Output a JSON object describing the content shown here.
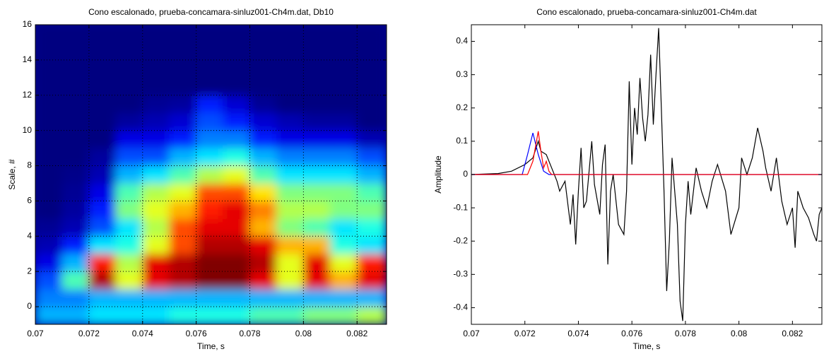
{
  "chart_data": [
    {
      "type": "heatmap",
      "title": "Cono escalonado, prueba-concamara-sinluz001-Ch4m.dat, Db10",
      "x_label": "Time, s",
      "y_label": "Scale, #",
      "xlim": [
        0.07,
        0.0831
      ],
      "ylim": [
        -1,
        16
      ],
      "xticks": [
        0.07,
        0.072,
        0.074,
        0.076,
        0.078,
        0.08,
        0.082
      ],
      "yticks": [
        0,
        2,
        4,
        6,
        8,
        10,
        12,
        14,
        16
      ],
      "grid": true,
      "colormap": "jet",
      "x_edges": [
        0.07,
        0.071,
        0.072,
        0.073,
        0.074,
        0.075,
        0.076,
        0.077,
        0.078,
        0.079,
        0.08,
        0.081,
        0.082,
        0.083,
        0.0831
      ],
      "y_edges": [
        -1,
        0,
        1,
        2,
        3,
        4,
        5,
        6,
        7,
        8,
        9,
        10,
        11,
        12,
        16
      ],
      "z": [
        [
          0.3,
          0.3,
          0.35,
          0.35,
          0.35,
          0.4,
          0.4,
          0.4,
          0.45,
          0.45,
          0.5,
          0.5,
          0.55,
          0.55
        ],
        [
          0.25,
          0.25,
          0.3,
          0.3,
          0.3,
          0.3,
          0.3,
          0.3,
          0.3,
          0.3,
          0.3,
          0.3,
          0.3,
          0.3
        ],
        [
          0.2,
          0.45,
          0.95,
          0.6,
          0.9,
          0.95,
          1,
          1,
          0.9,
          0.6,
          0.9,
          0.7,
          0.9,
          0.9
        ],
        [
          0.1,
          0.3,
          0.85,
          0.55,
          0.9,
          0.95,
          1,
          1,
          0.95,
          0.6,
          0.9,
          0.6,
          0.85,
          0.85
        ],
        [
          0.05,
          0.15,
          0.35,
          0.4,
          0.6,
          0.8,
          0.95,
          0.95,
          0.9,
          0.7,
          0.7,
          0.4,
          0.35,
          0.35
        ],
        [
          0.02,
          0.05,
          0.2,
          0.35,
          0.55,
          0.8,
          0.9,
          0.9,
          0.7,
          0.5,
          0.45,
          0.35,
          0.4,
          0.4
        ],
        [
          0,
          0.03,
          0.15,
          0.5,
          0.6,
          0.7,
          0.85,
          0.9,
          0.75,
          0.55,
          0.55,
          0.5,
          0.5,
          0.5
        ],
        [
          0,
          0.02,
          0.1,
          0.45,
          0.55,
          0.6,
          0.8,
          0.8,
          0.65,
          0.5,
          0.5,
          0.5,
          0.45,
          0.45
        ],
        [
          0,
          0.01,
          0.05,
          0.3,
          0.35,
          0.45,
          0.55,
          0.6,
          0.45,
          0.35,
          0.35,
          0.35,
          0.3,
          0.3
        ],
        [
          0,
          0,
          0.03,
          0.2,
          0.2,
          0.3,
          0.35,
          0.4,
          0.3,
          0.25,
          0.25,
          0.25,
          0.2,
          0.2
        ],
        [
          0,
          0,
          0,
          0.1,
          0.1,
          0.15,
          0.25,
          0.25,
          0.15,
          0.1,
          0.1,
          0.1,
          0.05,
          0.05
        ],
        [
          0,
          0,
          0,
          0.03,
          0.05,
          0.08,
          0.2,
          0.15,
          0.08,
          0.05,
          0.03,
          0.03,
          0,
          0
        ],
        [
          0,
          0,
          0,
          0,
          0.02,
          0.03,
          0.15,
          0.08,
          0.02,
          0,
          0,
          0,
          0,
          0
        ],
        [
          0,
          0,
          0,
          0,
          0,
          0,
          0,
          0,
          0,
          0,
          0,
          0,
          0,
          0
        ]
      ]
    },
    {
      "type": "line",
      "title": "Cono escalonado, prueba-concamara-sinluz001-Ch4m.dat",
      "x_label": "Time, s",
      "y_label": "Amplitude",
      "xlim": [
        0.07,
        0.0831
      ],
      "ylim": [
        -0.45,
        0.45
      ],
      "xticks": [
        0.07,
        0.072,
        0.074,
        0.076,
        0.078,
        0.08,
        0.082
      ],
      "yticks": [
        -0.4,
        -0.3,
        -0.2,
        -0.1,
        0,
        0.1,
        0.2,
        0.3,
        0.4
      ],
      "grid": false,
      "series": [
        {
          "color": "#000000",
          "x": [
            0.07,
            0.071,
            0.0715,
            0.072,
            0.0723,
            0.0725,
            0.0726,
            0.0728,
            0.073,
            0.0732,
            0.0733,
            0.0735,
            0.0737,
            0.0738,
            0.0739,
            0.074,
            0.0741,
            0.0742,
            0.0743,
            0.0745,
            0.0746,
            0.0748,
            0.0749,
            0.075,
            0.0751,
            0.0752,
            0.0753,
            0.0755,
            0.0757,
            0.0758,
            0.0759,
            0.076,
            0.0761,
            0.0762,
            0.0763,
            0.0764,
            0.0765,
            0.0766,
            0.0767,
            0.0768,
            0.0769,
            0.077,
            0.0771,
            0.0772,
            0.0773,
            0.0774,
            0.0775,
            0.0776,
            0.0777,
            0.0778,
            0.0779,
            0.078,
            0.0781,
            0.0782,
            0.0784,
            0.0786,
            0.0788,
            0.079,
            0.0792,
            0.0795,
            0.0797,
            0.08,
            0.0801,
            0.0803,
            0.0805,
            0.0807,
            0.0809,
            0.081,
            0.0812,
            0.0814,
            0.0816,
            0.0818,
            0.082,
            0.0821,
            0.0822,
            0.0824,
            0.0826,
            0.0828,
            0.0829,
            0.083,
            0.0831
          ],
          "values": [
            0,
            0.003,
            0.01,
            0.03,
            0.05,
            0.1,
            0.07,
            0.06,
            0.02,
            -0.02,
            -0.05,
            -0.02,
            -0.15,
            -0.06,
            -0.21,
            -0.05,
            0.08,
            -0.1,
            -0.08,
            0.1,
            -0.03,
            -0.12,
            0.03,
            0.09,
            -0.27,
            -0.05,
            0,
            -0.15,
            -0.18,
            -0.05,
            0.28,
            0.03,
            0.2,
            0.12,
            0.29,
            0.17,
            0.1,
            0.18,
            0.36,
            0.15,
            0.3,
            0.44,
            0.2,
            -0.05,
            -0.35,
            -0.2,
            0.05,
            -0.05,
            -0.15,
            -0.38,
            -0.44,
            -0.15,
            -0.02,
            -0.12,
            0.02,
            -0.05,
            -0.1,
            -0.02,
            0.03,
            -0.05,
            -0.18,
            -0.1,
            0.05,
            0,
            0.05,
            0.14,
            0.07,
            0.02,
            -0.05,
            0.05,
            -0.08,
            -0.15,
            -0.1,
            -0.22,
            -0.05,
            -0.1,
            -0.13,
            -0.18,
            -0.2,
            -0.12,
            -0.1
          ]
        },
        {
          "color": "#0000ff",
          "x": [
            0.07,
            0.0719,
            0.0721,
            0.0723,
            0.0725,
            0.0727,
            0.0729,
            0.0831
          ],
          "values": [
            0,
            0,
            0.06,
            0.125,
            0.06,
            0.01,
            0,
            0
          ]
        },
        {
          "color": "#ff0000",
          "x": [
            0.07,
            0.0721,
            0.0723,
            0.0725,
            0.0726,
            0.0727,
            0.0728,
            0.0729,
            0.073,
            0.0831
          ],
          "values": [
            0,
            0,
            0.04,
            0.13,
            0.07,
            0.02,
            0.04,
            0.01,
            0,
            0
          ]
        }
      ]
    }
  ]
}
